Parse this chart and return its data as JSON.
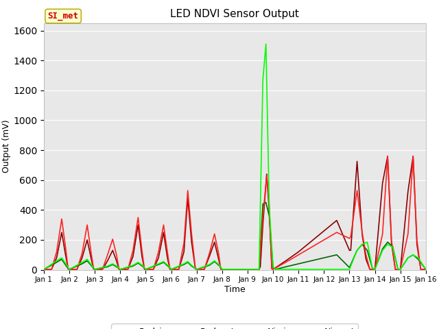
{
  "title": "LED NDVI Sensor Output",
  "xlabel": "Time",
  "ylabel": "Output (mV)",
  "ylim": [
    0,
    1650
  ],
  "xlim": [
    0,
    15
  ],
  "bg_color": "#e8e8e8",
  "fig_bg": "#ffffff",
  "annotation_text": "SI_met",
  "annotation_bg": "#ffffcc",
  "annotation_border": "#aaa800",
  "annotation_text_color": "#cc0000",
  "colors": {
    "Red_in": "#ff2222",
    "Red_out": "#880000",
    "Nir_in": "#00ff00",
    "Nir_out": "#006600"
  },
  "xtick_labels": [
    "Jan 1",
    "Jan 2",
    "Jan 3",
    "Jan 4",
    "Jan 5",
    "Jan 6",
    "Jan 7",
    "Jan 8",
    "Jan 9",
    "Jan 10",
    "Jan 11",
    "Jan 12",
    "Jan 13",
    "Jan 14",
    "Jan 15",
    "Jan 16"
  ],
  "xtick_positions": [
    0,
    1,
    2,
    3,
    4,
    5,
    6,
    7,
    8,
    9,
    10,
    11,
    12,
    13,
    14,
    15
  ],
  "Red_in": [
    [
      0,
      3
    ],
    [
      0.3,
      3
    ],
    [
      0.5,
      120
    ],
    [
      0.7,
      340
    ],
    [
      0.85,
      150
    ],
    [
      0.95,
      10
    ],
    [
      1.0,
      3
    ],
    [
      1.0,
      3
    ],
    [
      1.3,
      3
    ],
    [
      1.5,
      110
    ],
    [
      1.7,
      300
    ],
    [
      1.85,
      120
    ],
    [
      1.95,
      10
    ],
    [
      2.0,
      3
    ],
    [
      2.0,
      3
    ],
    [
      2.3,
      3
    ],
    [
      2.5,
      100
    ],
    [
      2.7,
      205
    ],
    [
      2.85,
      100
    ],
    [
      2.95,
      5
    ],
    [
      3.0,
      3
    ],
    [
      3.0,
      3
    ],
    [
      3.3,
      3
    ],
    [
      3.5,
      130
    ],
    [
      3.7,
      350
    ],
    [
      3.85,
      130
    ],
    [
      3.95,
      5
    ],
    [
      4.0,
      3
    ],
    [
      4.0,
      3
    ],
    [
      4.3,
      3
    ],
    [
      4.5,
      120
    ],
    [
      4.7,
      300
    ],
    [
      4.85,
      120
    ],
    [
      4.95,
      5
    ],
    [
      5.0,
      3
    ],
    [
      5.0,
      3
    ],
    [
      5.3,
      3
    ],
    [
      5.5,
      180
    ],
    [
      5.65,
      530
    ],
    [
      5.8,
      240
    ],
    [
      5.95,
      10
    ],
    [
      6.0,
      3
    ],
    [
      6.0,
      3
    ],
    [
      6.3,
      3
    ],
    [
      6.5,
      110
    ],
    [
      6.7,
      240
    ],
    [
      6.85,
      120
    ],
    [
      6.95,
      5
    ],
    [
      7.0,
      3
    ],
    [
      7.0,
      3
    ],
    [
      7.5,
      3
    ],
    [
      8.0,
      3
    ],
    [
      8.45,
      3
    ],
    [
      8.45,
      3
    ],
    [
      8.6,
      350
    ],
    [
      8.75,
      630
    ],
    [
      8.85,
      430
    ],
    [
      8.95,
      5
    ],
    [
      9.0,
      3
    ],
    [
      9.0,
      3
    ],
    [
      9.5,
      50
    ],
    [
      10.0,
      100
    ],
    [
      10.5,
      150
    ],
    [
      11.0,
      200
    ],
    [
      11.5,
      250
    ],
    [
      12.0,
      210
    ],
    [
      12.05,
      220
    ],
    [
      12.05,
      220
    ],
    [
      12.3,
      530
    ],
    [
      12.5,
      250
    ],
    [
      12.65,
      100
    ],
    [
      12.8,
      3
    ],
    [
      12.8,
      3
    ],
    [
      13.0,
      3
    ],
    [
      13.3,
      240
    ],
    [
      13.5,
      760
    ],
    [
      13.65,
      200
    ],
    [
      13.8,
      3
    ],
    [
      13.8,
      3
    ],
    [
      14.0,
      3
    ],
    [
      14.3,
      240
    ],
    [
      14.5,
      760
    ],
    [
      14.65,
      200
    ],
    [
      14.8,
      3
    ],
    [
      15.0,
      3
    ]
  ],
  "Red_out": [
    [
      0,
      3
    ],
    [
      0.3,
      3
    ],
    [
      0.5,
      80
    ],
    [
      0.7,
      250
    ],
    [
      0.85,
      100
    ],
    [
      0.95,
      5
    ],
    [
      1.0,
      3
    ],
    [
      1.0,
      3
    ],
    [
      1.3,
      3
    ],
    [
      1.5,
      80
    ],
    [
      1.7,
      200
    ],
    [
      1.85,
      80
    ],
    [
      1.95,
      5
    ],
    [
      2.0,
      3
    ],
    [
      2.0,
      3
    ],
    [
      2.3,
      3
    ],
    [
      2.5,
      60
    ],
    [
      2.7,
      130
    ],
    [
      2.85,
      60
    ],
    [
      2.95,
      3
    ],
    [
      3.0,
      3
    ],
    [
      3.0,
      3
    ],
    [
      3.3,
      3
    ],
    [
      3.5,
      90
    ],
    [
      3.7,
      300
    ],
    [
      3.85,
      90
    ],
    [
      3.95,
      3
    ],
    [
      4.0,
      3
    ],
    [
      4.0,
      3
    ],
    [
      4.3,
      3
    ],
    [
      4.5,
      80
    ],
    [
      4.7,
      250
    ],
    [
      4.85,
      80
    ],
    [
      4.95,
      3
    ],
    [
      5.0,
      3
    ],
    [
      5.0,
      3
    ],
    [
      5.3,
      3
    ],
    [
      5.5,
      120
    ],
    [
      5.65,
      480
    ],
    [
      5.8,
      185
    ],
    [
      5.95,
      5
    ],
    [
      6.0,
      3
    ],
    [
      6.0,
      3
    ],
    [
      6.3,
      3
    ],
    [
      6.5,
      90
    ],
    [
      6.7,
      185
    ],
    [
      6.85,
      80
    ],
    [
      6.95,
      3
    ],
    [
      7.0,
      3
    ],
    [
      7.0,
      3
    ],
    [
      7.5,
      3
    ],
    [
      8.0,
      3
    ],
    [
      8.45,
      3
    ],
    [
      8.5,
      20
    ],
    [
      8.5,
      20
    ],
    [
      8.6,
      300
    ],
    [
      8.75,
      640
    ],
    [
      8.85,
      390
    ],
    [
      8.95,
      10
    ],
    [
      9.0,
      3
    ],
    [
      9.0,
      3
    ],
    [
      9.5,
      60
    ],
    [
      10.0,
      120
    ],
    [
      10.5,
      190
    ],
    [
      11.0,
      260
    ],
    [
      11.5,
      330
    ],
    [
      12.0,
      130
    ],
    [
      12.05,
      130
    ],
    [
      12.05,
      130
    ],
    [
      12.3,
      725
    ],
    [
      12.5,
      235
    ],
    [
      12.65,
      70
    ],
    [
      12.8,
      3
    ],
    [
      12.8,
      3
    ],
    [
      13.0,
      3
    ],
    [
      13.3,
      580
    ],
    [
      13.5,
      760
    ],
    [
      13.65,
      180
    ],
    [
      13.8,
      3
    ],
    [
      13.8,
      3
    ],
    [
      14.0,
      3
    ],
    [
      14.3,
      525
    ],
    [
      14.5,
      760
    ],
    [
      14.65,
      170
    ],
    [
      14.8,
      3
    ],
    [
      15.0,
      3
    ]
  ],
  "Nir_in": [
    [
      0,
      3
    ],
    [
      0.5,
      60
    ],
    [
      0.7,
      80
    ],
    [
      0.9,
      30
    ],
    [
      1.0,
      3
    ],
    [
      1.0,
      3
    ],
    [
      1.5,
      50
    ],
    [
      1.7,
      70
    ],
    [
      1.9,
      25
    ],
    [
      2.0,
      3
    ],
    [
      2.0,
      3
    ],
    [
      2.5,
      25
    ],
    [
      2.7,
      40
    ],
    [
      2.9,
      20
    ],
    [
      3.0,
      3
    ],
    [
      3.0,
      3
    ],
    [
      3.5,
      30
    ],
    [
      3.7,
      50
    ],
    [
      3.9,
      25
    ],
    [
      4.0,
      3
    ],
    [
      4.0,
      3
    ],
    [
      4.5,
      40
    ],
    [
      4.7,
      55
    ],
    [
      4.9,
      25
    ],
    [
      5.0,
      3
    ],
    [
      5.0,
      3
    ],
    [
      5.5,
      40
    ],
    [
      5.65,
      55
    ],
    [
      5.8,
      30
    ],
    [
      6.0,
      3
    ],
    [
      6.0,
      3
    ],
    [
      6.5,
      35
    ],
    [
      6.7,
      60
    ],
    [
      6.9,
      30
    ],
    [
      7.0,
      3
    ],
    [
      7.0,
      3
    ],
    [
      7.5,
      3
    ],
    [
      8.0,
      3
    ],
    [
      8.45,
      3
    ],
    [
      8.45,
      3
    ],
    [
      8.6,
      1270
    ],
    [
      8.72,
      1510
    ],
    [
      8.85,
      420
    ],
    [
      9.0,
      20
    ],
    [
      9.1,
      3
    ],
    [
      9.1,
      3
    ],
    [
      9.5,
      3
    ],
    [
      10.0,
      3
    ],
    [
      10.5,
      3
    ],
    [
      11.0,
      3
    ],
    [
      11.5,
      3
    ],
    [
      12.0,
      3
    ],
    [
      12.0,
      3
    ],
    [
      12.3,
      130
    ],
    [
      12.5,
      170
    ],
    [
      12.7,
      185
    ],
    [
      12.9,
      10
    ],
    [
      13.0,
      3
    ],
    [
      13.0,
      3
    ],
    [
      13.3,
      130
    ],
    [
      13.5,
      170
    ],
    [
      13.7,
      150
    ],
    [
      13.9,
      5
    ],
    [
      14.0,
      3
    ],
    [
      14.0,
      3
    ],
    [
      14.3,
      80
    ],
    [
      14.5,
      100
    ],
    [
      14.7,
      80
    ],
    [
      15.0,
      3
    ]
  ],
  "Nir_out": [
    [
      0,
      3
    ],
    [
      0.5,
      50
    ],
    [
      0.7,
      70
    ],
    [
      0.9,
      20
    ],
    [
      1.0,
      3
    ],
    [
      1.0,
      3
    ],
    [
      1.5,
      40
    ],
    [
      1.7,
      60
    ],
    [
      1.9,
      20
    ],
    [
      2.0,
      3
    ],
    [
      2.0,
      3
    ],
    [
      2.5,
      20
    ],
    [
      2.7,
      35
    ],
    [
      2.9,
      15
    ],
    [
      3.0,
      3
    ],
    [
      3.0,
      3
    ],
    [
      3.5,
      25
    ],
    [
      3.7,
      45
    ],
    [
      3.9,
      20
    ],
    [
      4.0,
      3
    ],
    [
      4.0,
      3
    ],
    [
      4.5,
      35
    ],
    [
      4.7,
      50
    ],
    [
      4.9,
      20
    ],
    [
      5.0,
      3
    ],
    [
      5.0,
      3
    ],
    [
      5.5,
      35
    ],
    [
      5.65,
      50
    ],
    [
      5.8,
      25
    ],
    [
      6.0,
      3
    ],
    [
      6.0,
      3
    ],
    [
      6.5,
      30
    ],
    [
      6.7,
      55
    ],
    [
      6.9,
      25
    ],
    [
      7.0,
      3
    ],
    [
      7.0,
      3
    ],
    [
      7.5,
      3
    ],
    [
      8.0,
      3
    ],
    [
      8.45,
      3
    ],
    [
      8.45,
      3
    ],
    [
      8.6,
      440
    ],
    [
      8.72,
      450
    ],
    [
      8.85,
      360
    ],
    [
      9.0,
      15
    ],
    [
      9.1,
      3
    ],
    [
      9.1,
      3
    ],
    [
      9.5,
      20
    ],
    [
      10.0,
      40
    ],
    [
      10.5,
      60
    ],
    [
      11.0,
      80
    ],
    [
      11.5,
      100
    ],
    [
      12.0,
      15
    ],
    [
      12.0,
      15
    ],
    [
      12.3,
      130
    ],
    [
      12.5,
      170
    ],
    [
      12.7,
      130
    ],
    [
      12.9,
      10
    ],
    [
      13.0,
      3
    ],
    [
      13.0,
      3
    ],
    [
      13.3,
      140
    ],
    [
      13.5,
      185
    ],
    [
      13.7,
      155
    ],
    [
      13.9,
      5
    ],
    [
      14.0,
      3
    ],
    [
      14.0,
      3
    ],
    [
      14.3,
      80
    ],
    [
      14.5,
      100
    ],
    [
      14.7,
      70
    ],
    [
      15.0,
      3
    ]
  ]
}
